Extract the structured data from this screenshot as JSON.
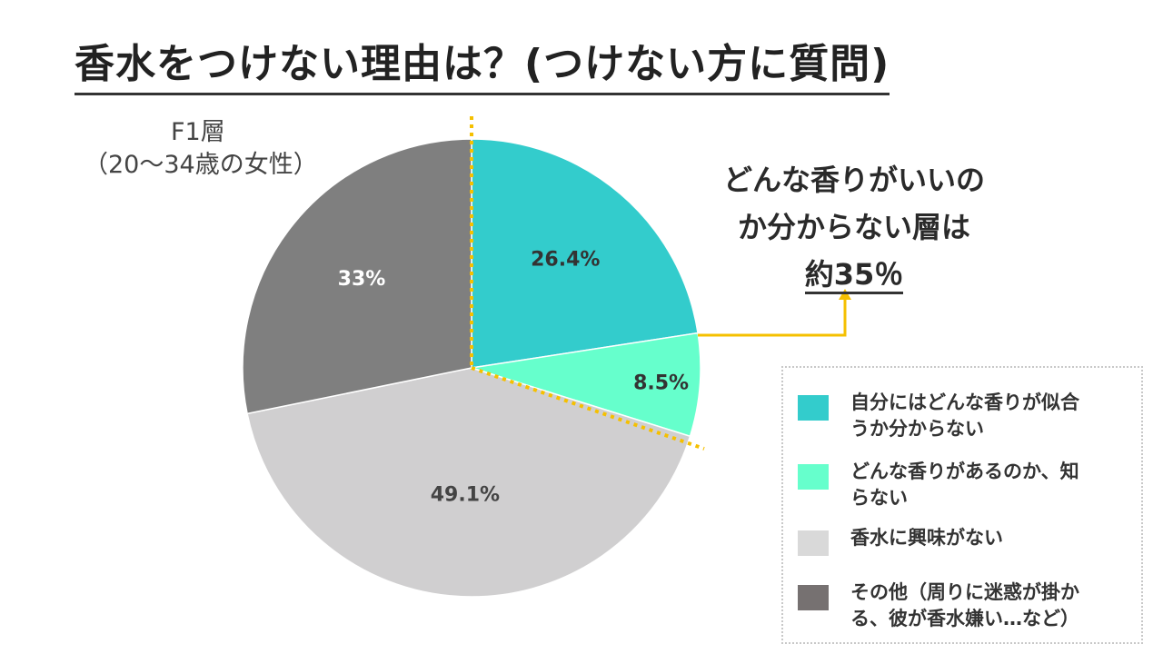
{
  "title": "香水をつけない理由は？(つけない方に質問)",
  "segment": {
    "line1": "F1層",
    "line2": "（20〜34歳の女性）"
  },
  "callout": {
    "line1": "どんな香りがいいの",
    "line2": "か分からない層は",
    "line3": "約35％"
  },
  "legend": [
    {
      "line1": "自分にはどんな香りが似合",
      "line2": "うか分からない",
      "color": "#33cccc"
    },
    {
      "line1": "どんな香りがあるのか、知",
      "line2": "らない",
      "color": "#66ffcc"
    },
    {
      "line1": "香水に興味がない",
      "line2": "",
      "color": "#d9d9d9"
    },
    {
      "line1": "その他（周りに迷惑が掛か",
      "line2": "る、彼が香水嫌い…など）",
      "color": "#767171"
    }
  ],
  "chart_data": {
    "type": "pie",
    "categories": [
      "自分にはどんな香りが似合うか分からない",
      "どんな香りがあるのか、知らない",
      "香水に興味がない",
      "その他（周りに迷惑が掛かる、彼が香水嫌い…など）"
    ],
    "values": [
      26.4,
      8.5,
      49.1,
      33
    ],
    "labels": [
      "26.4%",
      "8.5%",
      "49.1%",
      "33%"
    ],
    "colors": [
      "#33cccc",
      "#66ffcc",
      "#d0cfd0",
      "#7f7f7f"
    ],
    "label_colors": [
      "#333333",
      "#333333",
      "#444444",
      "#ffffff"
    ],
    "start_angle": 0,
    "highlight_color": "#f5c000",
    "legend_position": "bottom-right"
  }
}
